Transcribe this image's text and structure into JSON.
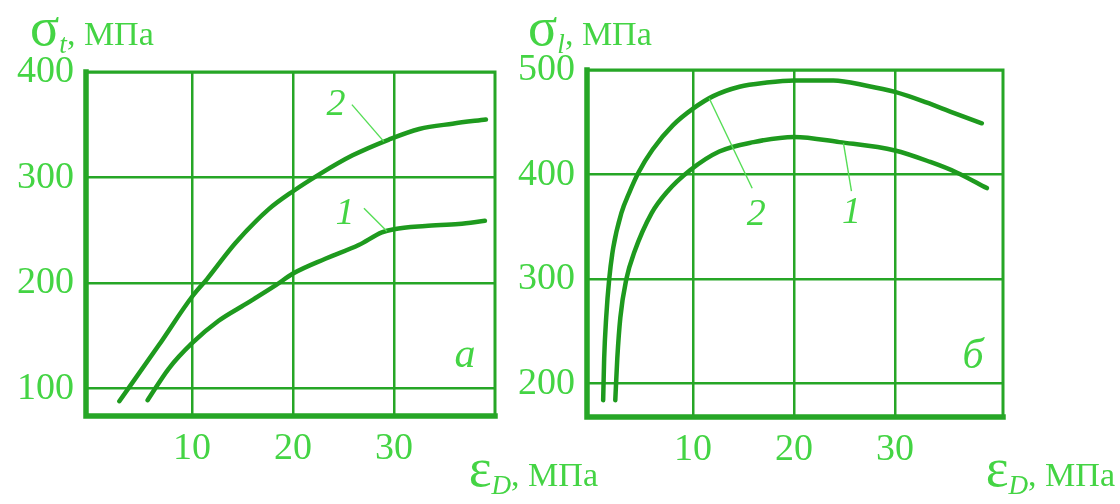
{
  "chart_data": [
    {
      "type": "line",
      "xlabel": "ε$_{D}$, МПа",
      "ylabel": "σ$_{t}$, МПа",
      "xlim": [
        -0.5,
        40
      ],
      "ylim": [
        74,
        400
      ],
      "xticks": [
        10,
        20,
        30
      ],
      "yticks": [
        100,
        200,
        300,
        400
      ],
      "grid": true,
      "annotations": [
        {
          "text": "1",
          "x": 29.3,
          "y": 249
        },
        {
          "text": "2",
          "x": 29,
          "y": 334
        },
        "а"
      ],
      "series": [
        {
          "color": "#1e9a1e",
          "x": [
            5.6,
            7.7,
            10,
            12.6,
            15.3,
            18.3,
            20,
            23.2,
            26.5,
            28.8,
            30,
            33.1,
            36.4,
            39
          ],
          "values": [
            89,
            119,
            143,
            164,
            180,
            198,
            209,
            223,
            236,
            248,
            251,
            254,
            256,
            259
          ]
        },
        {
          "color": "#1e9a1e",
          "x": [
            2.8,
            6.7,
            10,
            11.5,
            14.3,
            17.6,
            20,
            22.6,
            25.9,
            29.5,
            32.5,
            35.8,
            39.1
          ],
          "values": [
            88,
            141,
            187,
            204,
            238,
            270,
            287,
            303,
            321,
            336,
            346,
            351,
            355
          ]
        }
      ]
    },
    {
      "type": "line",
      "xlabel": "ε$_{D}$, МПа",
      "ylabel": "σ$_{l}$, МПа",
      "xlim": [
        -0.5,
        40.7
      ],
      "ylim": [
        168,
        500
      ],
      "xticks": [
        10,
        20,
        30
      ],
      "yticks": [
        200,
        300,
        400,
        500
      ],
      "grid": true,
      "annotations": [
        {
          "text": "1",
          "x": 24.9,
          "y": 430
        },
        {
          "text": "2",
          "x": 11.6,
          "y": 473
        },
        "б"
      ],
      "series": [
        {
          "color": "#1e9a1e",
          "x": [
            2.3,
            2.5,
            2.8,
            3.4,
            4.2,
            5.9,
            7.4,
            9.7,
            12.6,
            16,
            20,
            24.5,
            30,
            33.5,
            36.1,
            39.1
          ],
          "values": [
            184,
            224,
            263,
            300,
            326,
            363,
            383,
            404,
            422,
            431,
            436,
            431,
            423,
            412,
            402,
            387
          ]
        },
        {
          "color": "#1e9a1e",
          "x": [
            1.1,
            1.2,
            1.4,
            1.7,
            2.1,
            2.9,
            3.7,
            4.6,
            6,
            8,
            10,
            12,
            14.6,
            17.3,
            20,
            23.9,
            27.2,
            30,
            33.1,
            35.8,
            38.6
          ],
          "values": [
            184,
            224,
            263,
            300,
            330,
            363,
            383,
            402,
            424,
            447,
            463,
            475,
            484,
            488,
            490,
            490,
            485,
            479,
            469,
            459,
            449
          ]
        }
      ]
    }
  ]
}
